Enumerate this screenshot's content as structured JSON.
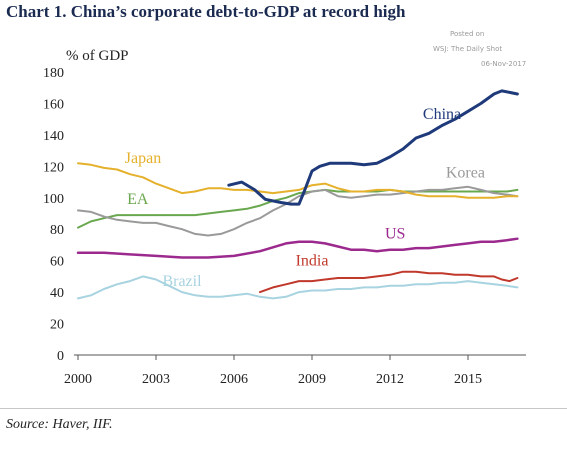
{
  "header": {
    "title": "Chart 1. China’s corporate debt-to-GDP at record high",
    "watermark": [
      "Posted on",
      "WSJ: The Daily Shot",
      "06-Nov-2017"
    ]
  },
  "footer": {
    "source": "Source: Haver, IIF."
  },
  "chart_data": {
    "type": "line",
    "title": "Chart 1. China’s corporate debt-to-GDP at record high",
    "ylabel": "% of GDP",
    "xlabel": "",
    "xlim": [
      2000,
      2017
    ],
    "ylim": [
      0,
      180
    ],
    "x_ticks": [
      2000,
      2003,
      2006,
      2009,
      2012,
      2015
    ],
    "y_ticks": [
      0,
      20,
      40,
      60,
      80,
      100,
      120,
      140,
      160,
      180
    ],
    "grid": false,
    "legend": "inline labels",
    "series": [
      {
        "name": "China",
        "color": "#1f3a7a",
        "width": 3,
        "points": [
          [
            2005.8,
            108
          ],
          [
            2006.3,
            110
          ],
          [
            2006.8,
            105
          ],
          [
            2007.2,
            99
          ],
          [
            2007.8,
            97
          ],
          [
            2008.2,
            96
          ],
          [
            2008.5,
            96
          ],
          [
            2008.7,
            104
          ],
          [
            2009,
            117
          ],
          [
            2009.3,
            120
          ],
          [
            2009.7,
            122
          ],
          [
            2010,
            122
          ],
          [
            2010.5,
            122
          ],
          [
            2011,
            121
          ],
          [
            2011.5,
            122
          ],
          [
            2012,
            126
          ],
          [
            2012.5,
            131
          ],
          [
            2013,
            138
          ],
          [
            2013.5,
            141
          ],
          [
            2014,
            146
          ],
          [
            2014.5,
            150
          ],
          [
            2015,
            155
          ],
          [
            2015.5,
            160
          ],
          [
            2016,
            166
          ],
          [
            2016.3,
            168
          ],
          [
            2016.6,
            167
          ],
          [
            2016.9,
            166
          ]
        ]
      },
      {
        "name": "Japan",
        "color": "#e5b12c",
        "width": 2,
        "points": [
          [
            2000,
            122
          ],
          [
            2000.5,
            121
          ],
          [
            2001,
            119
          ],
          [
            2001.5,
            118
          ],
          [
            2002,
            115
          ],
          [
            2002.5,
            113
          ],
          [
            2003,
            109
          ],
          [
            2003.5,
            106
          ],
          [
            2004,
            103
          ],
          [
            2004.5,
            104
          ],
          [
            2005,
            106
          ],
          [
            2005.5,
            106
          ],
          [
            2006,
            105
          ],
          [
            2006.5,
            105
          ],
          [
            2007,
            104
          ],
          [
            2007.5,
            103
          ],
          [
            2008,
            104
          ],
          [
            2008.5,
            105
          ],
          [
            2009,
            108
          ],
          [
            2009.5,
            109
          ],
          [
            2010,
            106
          ],
          [
            2010.5,
            104
          ],
          [
            2011,
            104
          ],
          [
            2011.5,
            105
          ],
          [
            2012,
            105
          ],
          [
            2012.5,
            104
          ],
          [
            2013,
            102
          ],
          [
            2013.5,
            101
          ],
          [
            2014,
            101
          ],
          [
            2014.5,
            101
          ],
          [
            2015,
            100
          ],
          [
            2015.5,
            100
          ],
          [
            2016,
            100
          ],
          [
            2016.5,
            101
          ],
          [
            2016.9,
            101
          ]
        ]
      },
      {
        "name": "Korea",
        "color": "#9a9a9a",
        "width": 2,
        "points": [
          [
            2000,
            92
          ],
          [
            2000.5,
            91
          ],
          [
            2001,
            88
          ],
          [
            2001.5,
            86
          ],
          [
            2002,
            85
          ],
          [
            2002.5,
            84
          ],
          [
            2003,
            84
          ],
          [
            2003.5,
            82
          ],
          [
            2004,
            80
          ],
          [
            2004.5,
            77
          ],
          [
            2005,
            76
          ],
          [
            2005.5,
            77
          ],
          [
            2006,
            80
          ],
          [
            2006.5,
            84
          ],
          [
            2007,
            87
          ],
          [
            2007.5,
            92
          ],
          [
            2008,
            96
          ],
          [
            2008.5,
            101
          ],
          [
            2009,
            104
          ],
          [
            2009.5,
            105
          ],
          [
            2010,
            101
          ],
          [
            2010.5,
            100
          ],
          [
            2011,
            101
          ],
          [
            2011.5,
            102
          ],
          [
            2012,
            102
          ],
          [
            2012.5,
            103
          ],
          [
            2013,
            104
          ],
          [
            2013.5,
            105
          ],
          [
            2014,
            105
          ],
          [
            2014.5,
            106
          ],
          [
            2015,
            107
          ],
          [
            2015.5,
            105
          ],
          [
            2016,
            103
          ],
          [
            2016.5,
            102
          ],
          [
            2016.9,
            101
          ]
        ]
      },
      {
        "name": "EA",
        "color": "#6aa84f",
        "width": 2,
        "points": [
          [
            2000,
            81
          ],
          [
            2000.5,
            85
          ],
          [
            2001,
            87
          ],
          [
            2001.5,
            89
          ],
          [
            2002,
            89
          ],
          [
            2002.5,
            89
          ],
          [
            2003,
            89
          ],
          [
            2003.5,
            89
          ],
          [
            2004,
            89
          ],
          [
            2004.5,
            89
          ],
          [
            2005,
            90
          ],
          [
            2005.5,
            91
          ],
          [
            2006,
            92
          ],
          [
            2006.5,
            93
          ],
          [
            2007,
            95
          ],
          [
            2007.5,
            98
          ],
          [
            2008,
            100
          ],
          [
            2008.5,
            103
          ],
          [
            2009,
            104
          ],
          [
            2009.5,
            105
          ],
          [
            2010,
            104
          ],
          [
            2010.5,
            104
          ],
          [
            2011,
            104
          ],
          [
            2011.5,
            104
          ],
          [
            2012,
            105
          ],
          [
            2012.5,
            104
          ],
          [
            2013,
            104
          ],
          [
            2013.5,
            104
          ],
          [
            2014,
            104
          ],
          [
            2014.5,
            104
          ],
          [
            2015,
            104
          ],
          [
            2015.5,
            104
          ],
          [
            2016,
            104
          ],
          [
            2016.5,
            104
          ],
          [
            2016.9,
            105
          ]
        ]
      },
      {
        "name": "US",
        "color": "#9c2a8e",
        "width": 2.5,
        "points": [
          [
            2000,
            65
          ],
          [
            2001,
            65
          ],
          [
            2002,
            64
          ],
          [
            2003,
            63
          ],
          [
            2004,
            62
          ],
          [
            2005,
            62
          ],
          [
            2006,
            63
          ],
          [
            2007,
            66
          ],
          [
            2008,
            71
          ],
          [
            2008.5,
            72
          ],
          [
            2009,
            72
          ],
          [
            2009.5,
            71
          ],
          [
            2010,
            69
          ],
          [
            2010.5,
            67
          ],
          [
            2011,
            67
          ],
          [
            2011.5,
            66
          ],
          [
            2012,
            67
          ],
          [
            2012.5,
            67
          ],
          [
            2013,
            68
          ],
          [
            2013.5,
            68
          ],
          [
            2014,
            69
          ],
          [
            2014.5,
            70
          ],
          [
            2015,
            71
          ],
          [
            2015.5,
            72
          ],
          [
            2016,
            72
          ],
          [
            2016.5,
            73
          ],
          [
            2016.9,
            74
          ]
        ]
      },
      {
        "name": "India",
        "color": "#c0392b",
        "width": 2,
        "points": [
          [
            2007,
            40
          ],
          [
            2007.5,
            43
          ],
          [
            2008,
            45
          ],
          [
            2008.5,
            47
          ],
          [
            2009,
            47
          ],
          [
            2009.5,
            48
          ],
          [
            2010,
            49
          ],
          [
            2010.5,
            49
          ],
          [
            2011,
            49
          ],
          [
            2011.5,
            50
          ],
          [
            2012,
            51
          ],
          [
            2012.5,
            53
          ],
          [
            2013,
            53
          ],
          [
            2013.5,
            52
          ],
          [
            2014,
            52
          ],
          [
            2014.5,
            51
          ],
          [
            2015,
            51
          ],
          [
            2015.5,
            50
          ],
          [
            2016,
            50
          ],
          [
            2016.3,
            48
          ],
          [
            2016.6,
            47
          ],
          [
            2016.9,
            49
          ]
        ]
      },
      {
        "name": "Brazil",
        "color": "#a8d3e0",
        "width": 2,
        "points": [
          [
            2000,
            36
          ],
          [
            2000.5,
            38
          ],
          [
            2001,
            42
          ],
          [
            2001.5,
            45
          ],
          [
            2002,
            47
          ],
          [
            2002.5,
            50
          ],
          [
            2003,
            48
          ],
          [
            2003.5,
            44
          ],
          [
            2004,
            40
          ],
          [
            2004.5,
            38
          ],
          [
            2005,
            37
          ],
          [
            2005.5,
            37
          ],
          [
            2006,
            38
          ],
          [
            2006.5,
            39
          ],
          [
            2007,
            37
          ],
          [
            2007.5,
            36
          ],
          [
            2008,
            37
          ],
          [
            2008.5,
            40
          ],
          [
            2009,
            41
          ],
          [
            2009.5,
            41
          ],
          [
            2010,
            42
          ],
          [
            2010.5,
            42
          ],
          [
            2011,
            43
          ],
          [
            2011.5,
            43
          ],
          [
            2012,
            44
          ],
          [
            2012.5,
            44
          ],
          [
            2013,
            45
          ],
          [
            2013.5,
            45
          ],
          [
            2014,
            46
          ],
          [
            2014.5,
            46
          ],
          [
            2015,
            47
          ],
          [
            2015.5,
            46
          ],
          [
            2016,
            45
          ],
          [
            2016.5,
            44
          ],
          [
            2016.9,
            43
          ]
        ]
      }
    ]
  }
}
